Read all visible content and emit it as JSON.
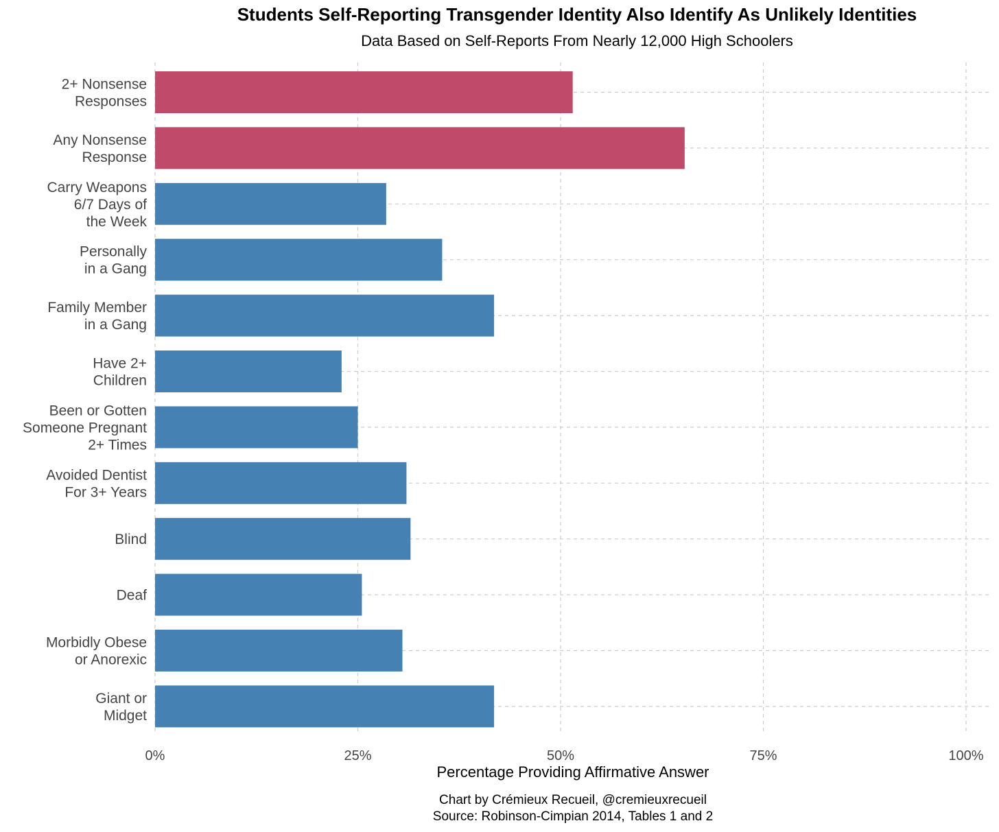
{
  "chart_data": {
    "type": "bar",
    "orientation": "horizontal",
    "title": "Students Self-Reporting Transgender Identity Also Identify As Unlikely Identities",
    "subtitle": "Data Based on Self-Reports From Nearly 12,000 High Schoolers",
    "xlabel": "Percentage Providing Affirmative Answer",
    "ylabel": "",
    "xlim": [
      0,
      100
    ],
    "x_ticks": [
      0,
      25,
      50,
      75,
      100
    ],
    "x_tick_labels": [
      "0%",
      "25%",
      "50%",
      "75%",
      "100%"
    ],
    "grid": true,
    "categories": [
      [
        "2+ Nonsense",
        "Responses"
      ],
      [
        "Any Nonsense",
        "Response"
      ],
      [
        "Carry Weapons",
        "6/7 Days of",
        "the Week"
      ],
      [
        "Personally",
        "in a Gang"
      ],
      [
        "Family Member",
        "in a Gang"
      ],
      [
        "Have 2+",
        "Children"
      ],
      [
        "Been or Gotten",
        "Someone Pregnant",
        "2+ Times"
      ],
      [
        "Avoided Dentist",
        "For 3+ Years"
      ],
      [
        "Blind"
      ],
      [
        "Deaf"
      ],
      [
        "Morbidly Obese",
        "or Anorexic"
      ],
      [
        "Giant or",
        "Midget"
      ]
    ],
    "values": [
      51.5,
      65.3,
      28.5,
      35.4,
      41.8,
      23.0,
      25.0,
      31.0,
      31.5,
      25.5,
      30.5,
      41.8
    ],
    "bar_groups": [
      "nonsense",
      "nonsense",
      "identity",
      "identity",
      "identity",
      "identity",
      "identity",
      "identity",
      "identity",
      "identity",
      "identity",
      "identity"
    ]
  },
  "colors": {
    "nonsense": "#c04a69",
    "identity": "#4681b3",
    "grid": "#cccccc",
    "tick_text": "#444444"
  },
  "caption": {
    "line1": "Chart by Crémieux Recueil, @cremieuxrecueil",
    "line2": "Source: Robinson-Cimpian 2014, Tables 1 and 2"
  }
}
